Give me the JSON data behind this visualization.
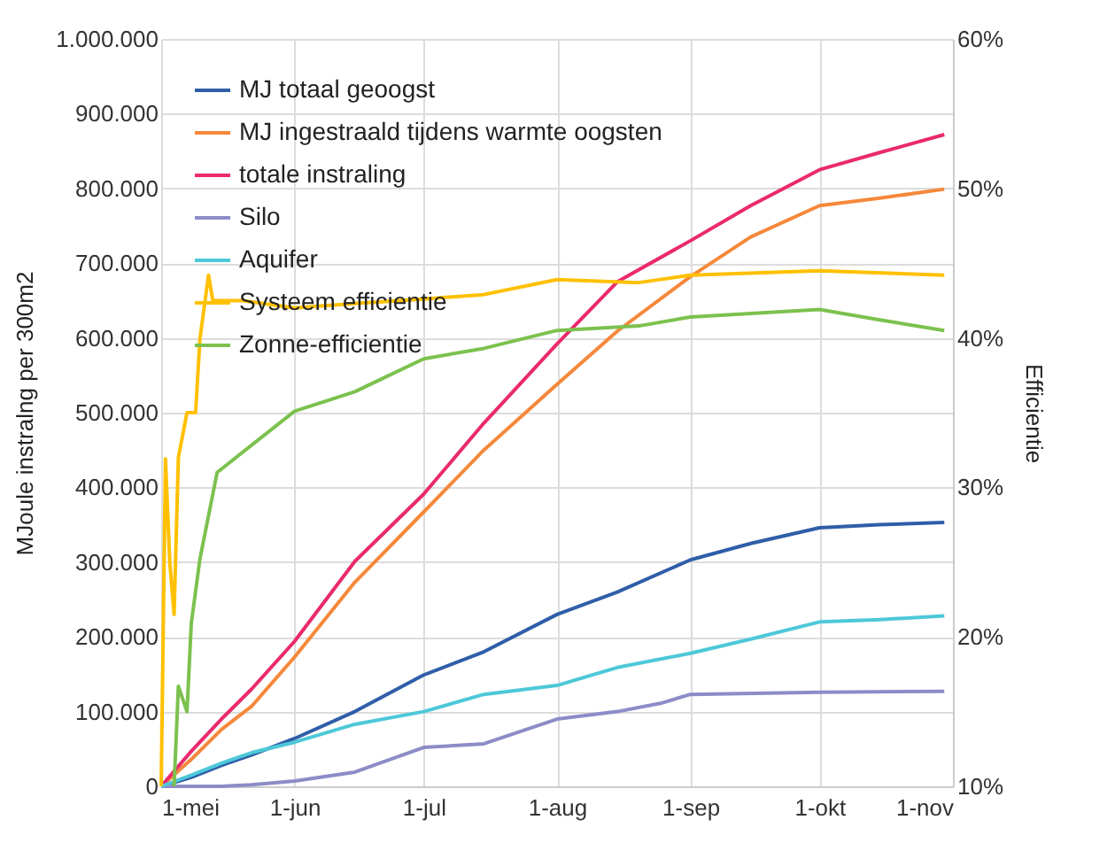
{
  "chart_data": {
    "type": "line",
    "xlabel": null,
    "ylabel": "MJoule instralng per 300m2",
    "y2label": "Efficientie",
    "xlim": [
      "--05-01",
      "--11-01"
    ],
    "xticks": [
      {
        "value": "--05-01",
        "label": "1-mei"
      },
      {
        "value": "--06-01",
        "label": "1-jun"
      },
      {
        "value": "--07-01",
        "label": "1-jul"
      },
      {
        "value": "--08-01",
        "label": "1-aug"
      },
      {
        "value": "--09-01",
        "label": "1-sep"
      },
      {
        "value": "--10-01",
        "label": "1-okt"
      },
      {
        "value": "--11-01",
        "label": "1-nov"
      }
    ],
    "ylim": [
      0,
      1000000
    ],
    "yticks": [
      {
        "value": 0,
        "label": "0"
      },
      {
        "value": 100000,
        "label": "100.000"
      },
      {
        "value": 200000,
        "label": "200.000"
      },
      {
        "value": 300000,
        "label": "300.000"
      },
      {
        "value": 400000,
        "label": "400.000"
      },
      {
        "value": 500000,
        "label": "500.000"
      },
      {
        "value": 600000,
        "label": "600.000"
      },
      {
        "value": 700000,
        "label": "700.000"
      },
      {
        "value": 800000,
        "label": "800.000"
      },
      {
        "value": 900000,
        "label": "900.000"
      },
      {
        "value": 1000000,
        "label": "1.000.000"
      }
    ],
    "y2lim": [
      10,
      60
    ],
    "y2ticks": [
      {
        "value": 10,
        "label": "10%"
      },
      {
        "value": 20,
        "label": "20%"
      },
      {
        "value": 30,
        "label": "30%"
      },
      {
        "value": 40,
        "label": "40%"
      },
      {
        "value": 50,
        "label": "50%"
      },
      {
        "value": 60,
        "label": "60%"
      }
    ],
    "grid": true,
    "legend": "top left",
    "line_style": "solid",
    "marker": "none",
    "x": [
      "--05-01",
      "--05-08",
      "--05-15",
      "--05-22",
      "--06-01",
      "--06-15",
      "--07-01",
      "--07-15",
      "--08-01",
      "--08-15",
      "--09-01",
      "--09-15",
      "--10-01",
      "--10-15",
      "--10-30"
    ],
    "series": [
      {
        "name": "MJ totaal geoogst",
        "color": "#2f5ea8",
        "values": [
          0,
          12000,
          28000,
          42000,
          64000,
          100000,
          149000,
          180000,
          230000,
          260000,
          303000,
          325000,
          346000,
          350000,
          353000
        ]
      },
      {
        "name": "MJ ingestraald tijdens warmte oogsten",
        "color": "#f5883a",
        "values": [
          0,
          36000,
          76000,
          107000,
          173000,
          273000,
          367000,
          450000,
          538000,
          609000,
          682000,
          735000,
          777000,
          787000,
          799000
        ]
      },
      {
        "name": "totale instraling",
        "color": "#ea2a6d",
        "values": [
          0,
          47000,
          90000,
          130000,
          194000,
          301000,
          391000,
          486000,
          592000,
          675000,
          730000,
          777000,
          825000,
          848000,
          872000
        ]
      },
      {
        "name": "Silo",
        "color": "#8c8cc8",
        "x": [
          "--05-01",
          "--05-15",
          "--05-22",
          "--06-01",
          "--06-15",
          "--07-01",
          "--07-15",
          "--08-01",
          "--08-15",
          "--08-25",
          "--09-01",
          "--10-01",
          "--10-30"
        ],
        "values": [
          0,
          0,
          2000,
          7000,
          19000,
          52000,
          57000,
          90000,
          100000,
          111000,
          123000,
          126000,
          127000
        ]
      },
      {
        "name": "Aquifer",
        "color": "#4dc8d8",
        "values": [
          0,
          15000,
          31000,
          45000,
          59000,
          83000,
          100000,
          123000,
          135000,
          159000,
          178000,
          197000,
          220000,
          223000,
          228000
        ]
      },
      {
        "name": "Systeem efficientie",
        "color": "#ffc000",
        "axis": "y2",
        "x": [
          "--05-01",
          "--05-02",
          "--05-03",
          "--05-04",
          "--05-05",
          "--05-07",
          "--05-09",
          "--05-10",
          "--05-12",
          "--05-13",
          "--05-20",
          "--06-01",
          "--06-15",
          "--07-01",
          "--07-15",
          "--08-01",
          "--08-20",
          "--09-01",
          "--10-01",
          "--10-30"
        ],
        "values": [
          10,
          31.9,
          25,
          21.5,
          32,
          35,
          35,
          39.9,
          44.2,
          42.5,
          42.5,
          42,
          42.3,
          42.6,
          42.9,
          43.9,
          43.7,
          44.2,
          44.5,
          44.2
        ]
      },
      {
        "name": "Zonne-efficientie",
        "color": "#7cc14e",
        "axis": "y2",
        "x": [
          "--05-04",
          "--05-05",
          "--05-07",
          "--05-08",
          "--05-10",
          "--05-14",
          "--06-01",
          "--06-15",
          "--07-01",
          "--07-15",
          "--08-01",
          "--08-20",
          "--09-01",
          "--10-01",
          "--10-15",
          "--10-30"
        ],
        "values": [
          10,
          16.7,
          15,
          20.9,
          25.2,
          31,
          35.1,
          36.4,
          38.6,
          39.3,
          40.5,
          40.8,
          41.4,
          41.9,
          41.2,
          40.5
        ]
      }
    ]
  }
}
